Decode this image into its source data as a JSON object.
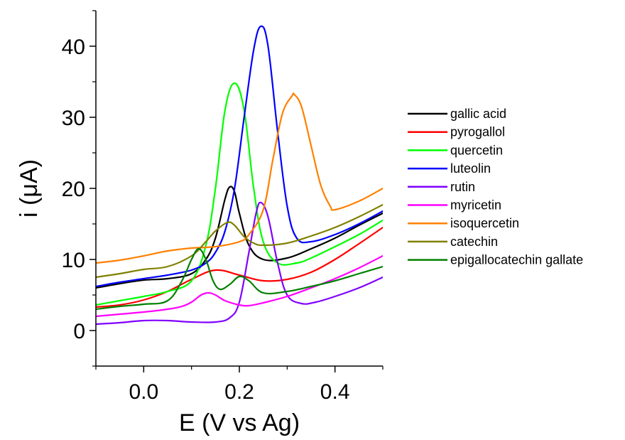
{
  "chart_data": {
    "type": "line",
    "title": "",
    "xlabel": "E (V vs Ag)",
    "ylabel": "i (μA)",
    "xlim": [
      -0.1,
      0.5
    ],
    "ylim": [
      -5,
      45
    ],
    "xticks": [
      0.0,
      0.2,
      0.4
    ],
    "xtick_labels": [
      "0.0",
      "0.2",
      "0.4"
    ],
    "yticks": [
      0,
      10,
      20,
      30,
      40
    ],
    "ytick_labels": [
      "0",
      "10",
      "20",
      "30",
      "40"
    ],
    "grid": false,
    "legend_position": "right",
    "series": [
      {
        "name": "gallic acid",
        "color": "#000000",
        "x": [
          -0.1,
          -0.05,
          0.0,
          0.05,
          0.1,
          0.13,
          0.15,
          0.17,
          0.18,
          0.19,
          0.2,
          0.22,
          0.25,
          0.3,
          0.35,
          0.4,
          0.45,
          0.5
        ],
        "y": [
          6.0,
          6.6,
          7.1,
          7.3,
          8.0,
          10.0,
          13.0,
          18.5,
          20.2,
          19.5,
          16.5,
          12.0,
          10.0,
          10.2,
          11.5,
          13.0,
          14.8,
          16.5
        ]
      },
      {
        "name": "pyrogallol",
        "color": "#ff0000",
        "x": [
          -0.1,
          -0.05,
          0.0,
          0.05,
          0.1,
          0.15,
          0.2,
          0.25,
          0.3,
          0.35,
          0.4,
          0.45,
          0.5
        ],
        "y": [
          3.3,
          3.6,
          4.3,
          5.5,
          7.2,
          8.5,
          7.8,
          7.0,
          7.2,
          8.2,
          10.0,
          12.2,
          14.5
        ]
      },
      {
        "name": "quercetin",
        "color": "#00ff00",
        "x": [
          -0.1,
          -0.05,
          0.0,
          0.05,
          0.1,
          0.13,
          0.15,
          0.17,
          0.19,
          0.21,
          0.23,
          0.25,
          0.28,
          0.32,
          0.35,
          0.4,
          0.45,
          0.5
        ],
        "y": [
          3.6,
          4.2,
          4.8,
          5.5,
          7.0,
          12.0,
          20.0,
          31.0,
          34.8,
          31.0,
          20.0,
          12.5,
          9.5,
          9.5,
          10.2,
          11.8,
          13.5,
          15.5
        ]
      },
      {
        "name": "luteolin",
        "color": "#0000ff",
        "x": [
          -0.1,
          -0.05,
          0.0,
          0.05,
          0.1,
          0.13,
          0.15,
          0.17,
          0.19,
          0.21,
          0.23,
          0.245,
          0.26,
          0.28,
          0.3,
          0.32,
          0.35,
          0.4,
          0.45,
          0.5
        ],
        "y": [
          6.2,
          6.8,
          7.3,
          7.8,
          8.5,
          9.5,
          11.0,
          14.0,
          20.0,
          30.0,
          39.5,
          42.8,
          40.0,
          28.0,
          17.5,
          13.0,
          12.5,
          13.5,
          15.0,
          16.8
        ]
      },
      {
        "name": "rutin",
        "color": "#8000ff",
        "x": [
          -0.1,
          -0.05,
          0.0,
          0.05,
          0.1,
          0.15,
          0.18,
          0.2,
          0.22,
          0.235,
          0.245,
          0.26,
          0.28,
          0.3,
          0.33,
          0.36,
          0.4,
          0.45,
          0.5
        ],
        "y": [
          0.9,
          1.1,
          1.4,
          1.4,
          1.2,
          1.2,
          1.8,
          4.0,
          11.0,
          16.5,
          18.0,
          16.0,
          9.5,
          5.0,
          3.8,
          4.0,
          4.8,
          6.0,
          7.5
        ]
      },
      {
        "name": "myricetin",
        "color": "#ff00ff",
        "x": [
          -0.1,
          -0.05,
          0.0,
          0.05,
          0.08,
          0.1,
          0.12,
          0.135,
          0.15,
          0.17,
          0.2,
          0.22,
          0.25,
          0.3,
          0.35,
          0.4,
          0.45,
          0.5
        ],
        "y": [
          2.0,
          2.3,
          2.6,
          3.0,
          3.4,
          4.0,
          5.0,
          5.3,
          5.0,
          4.2,
          3.6,
          3.5,
          3.9,
          4.8,
          6.0,
          7.3,
          8.8,
          10.5
        ]
      },
      {
        "name": "isoquercetin",
        "color": "#ff8000",
        "x": [
          -0.1,
          -0.05,
          0.0,
          0.05,
          0.1,
          0.15,
          0.2,
          0.22,
          0.25,
          0.27,
          0.29,
          0.31,
          0.315,
          0.33,
          0.35,
          0.37,
          0.39,
          0.4,
          0.45,
          0.5
        ],
        "y": [
          9.5,
          9.9,
          10.5,
          11.2,
          11.6,
          11.8,
          12.5,
          13.5,
          17.0,
          24.0,
          30.5,
          33.0,
          33.2,
          31.5,
          26.0,
          20.5,
          17.5,
          17.0,
          18.2,
          20.0
        ]
      },
      {
        "name": "catechin",
        "color": "#808000",
        "x": [
          -0.1,
          -0.05,
          0.0,
          0.05,
          0.1,
          0.13,
          0.15,
          0.175,
          0.19,
          0.21,
          0.23,
          0.25,
          0.3,
          0.35,
          0.4,
          0.45,
          0.5
        ],
        "y": [
          7.5,
          8.0,
          8.6,
          9.0,
          10.5,
          12.5,
          14.0,
          15.2,
          14.8,
          13.2,
          12.3,
          12.0,
          12.3,
          13.3,
          14.5,
          16.0,
          17.7
        ]
      },
      {
        "name": "epigallocatechin gallate",
        "color": "#008000",
        "x": [
          -0.1,
          -0.05,
          0.0,
          0.05,
          0.08,
          0.1,
          0.115,
          0.13,
          0.145,
          0.16,
          0.18,
          0.2,
          0.22,
          0.25,
          0.3,
          0.35,
          0.4,
          0.45,
          0.5
        ],
        "y": [
          3.0,
          3.4,
          3.7,
          4.2,
          7.0,
          10.0,
          11.5,
          10.0,
          7.0,
          5.8,
          6.5,
          7.6,
          7.0,
          5.3,
          5.5,
          6.2,
          7.0,
          8.0,
          9.0
        ]
      }
    ]
  }
}
